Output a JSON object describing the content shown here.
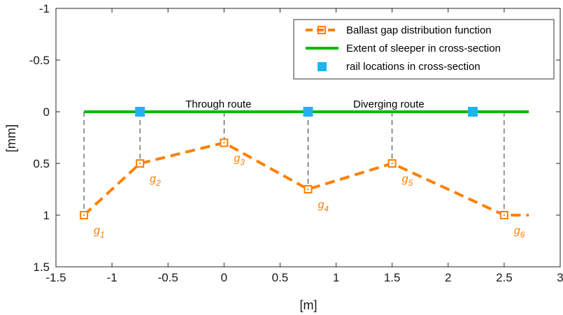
{
  "chart_data": {
    "type": "line",
    "title": "",
    "xlabel": "[m]",
    "ylabel": "[mm]",
    "xlim": [
      -1.5,
      3
    ],
    "ylim": [
      -1,
      1.5
    ],
    "y_reversed": true,
    "grid": false,
    "legend_position": "top-right",
    "xticks": [
      -1.5,
      -1,
      -0.5,
      0,
      0.5,
      1,
      1.5,
      2,
      2.5,
      3
    ],
    "xtick_labels": [
      "-1.5",
      "-1",
      "-0.5",
      "0",
      "0.5",
      "1",
      "1.5",
      "2",
      "2.5",
      "3"
    ],
    "yticks": [
      -1,
      -0.5,
      0,
      0.5,
      1,
      1.5
    ],
    "ytick_labels": [
      "-1",
      "-0.5",
      "0",
      "0.5",
      "1",
      "1.5"
    ],
    "series": [
      {
        "name": "Ballast gap distribution function",
        "style": "dashed-with-square-markers",
        "color": "#FF8000",
        "x": [
          -1.25,
          -0.75,
          0,
          0.75,
          1.5,
          2.5,
          2.72
        ],
        "y": [
          1.0,
          0.5,
          0.3,
          0.75,
          0.5,
          1.0,
          1.0
        ],
        "marker_count": 6
      },
      {
        "name": "Extent of sleeper in cross-section",
        "style": "solid",
        "color": "#00BB00",
        "x": [
          -1.25,
          2.72
        ],
        "y": [
          0,
          0
        ]
      },
      {
        "name": "rail locations in cross-section",
        "style": "markers-only",
        "color": "#1EB4F0",
        "x": [
          -0.75,
          0.75,
          2.22
        ],
        "y": [
          0,
          0,
          0
        ]
      }
    ],
    "guide_lines": {
      "color": "#000000",
      "x": [
        -1.25,
        -0.75,
        0,
        0.75,
        1.5,
        2.5
      ]
    },
    "point_labels": [
      {
        "base": "g",
        "sub": "1",
        "x": -1.25,
        "y": 1.0
      },
      {
        "base": "g",
        "sub": "2",
        "x": -0.75,
        "y": 0.5
      },
      {
        "base": "g",
        "sub": "3",
        "x": 0,
        "y": 0.3
      },
      {
        "base": "g",
        "sub": "4",
        "x": 0.75,
        "y": 0.75
      },
      {
        "base": "g",
        "sub": "5",
        "x": 1.5,
        "y": 0.5
      },
      {
        "base": "g",
        "sub": "6",
        "x": 2.5,
        "y": 1.0
      }
    ],
    "annotations": [
      {
        "text": "Through route",
        "x": -0.05,
        "y": -0.04
      },
      {
        "text": "Diverging route",
        "x": 1.47,
        "y": -0.04
      }
    ]
  }
}
